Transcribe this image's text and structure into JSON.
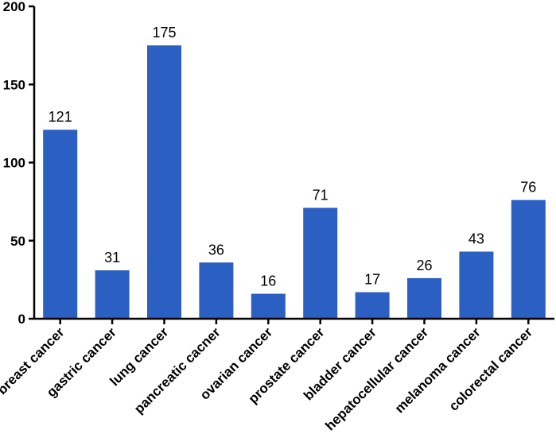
{
  "chart_data": {
    "type": "bar",
    "title": "",
    "xlabel": "",
    "ylabel": "",
    "categories": [
      "breast cancer",
      "gastric cancer",
      "lung cancer",
      "pancreatic cacner",
      "ovarian cancer",
      "prostate cancer",
      "bladder cancer",
      "hepatocellular cancer",
      "melanoma cancer",
      "colorectal cancer"
    ],
    "values": [
      121,
      31,
      175,
      36,
      16,
      71,
      17,
      26,
      43,
      76
    ],
    "ylim": [
      0,
      200
    ],
    "yticks": [
      0,
      50,
      100,
      150,
      200
    ],
    "grid": false,
    "legend": "none",
    "bar_color": "#2c5fc2",
    "axis_color": "#000000"
  }
}
